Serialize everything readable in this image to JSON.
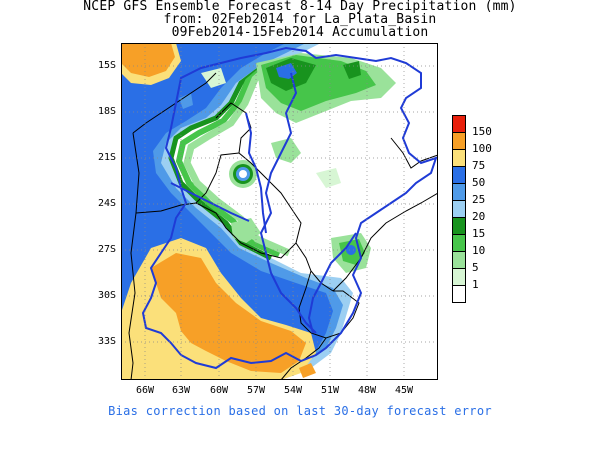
{
  "title": {
    "line1": "NCEP GFS Ensemble Forecast 8-14 Day Precipitation (mm)",
    "line2": "from: 02Feb2014   for La_Plata_Basin",
    "line3": "09Feb2014-15Feb2014 Accumulation"
  },
  "axes": {
    "y_ticks": [
      "15S",
      "18S",
      "21S",
      "24S",
      "27S",
      "30S",
      "33S"
    ],
    "x_ticks": [
      "66W",
      "63W",
      "60W",
      "57W",
      "54W",
      "51W",
      "48W",
      "45W"
    ]
  },
  "legend": {
    "items": [
      {
        "label": "150",
        "color": "#e8200c"
      },
      {
        "label": "100",
        "color": "#f7a027"
      },
      {
        "label": "75",
        "color": "#fbe07a"
      },
      {
        "label": "50",
        "color": "#2a6fe6"
      },
      {
        "label": "25",
        "color": "#4f9ae8"
      },
      {
        "label": "20",
        "color": "#9ccff2"
      },
      {
        "label": "15",
        "color": "#18931e"
      },
      {
        "label": "10",
        "color": "#46c54a"
      },
      {
        "label": "5",
        "color": "#9ae29a"
      },
      {
        "label": "1",
        "color": "#d7f6d4"
      },
      {
        "label": "",
        "color": "#ffffff"
      }
    ]
  },
  "footer": "Bias correction based on last 30-day forecast error"
}
